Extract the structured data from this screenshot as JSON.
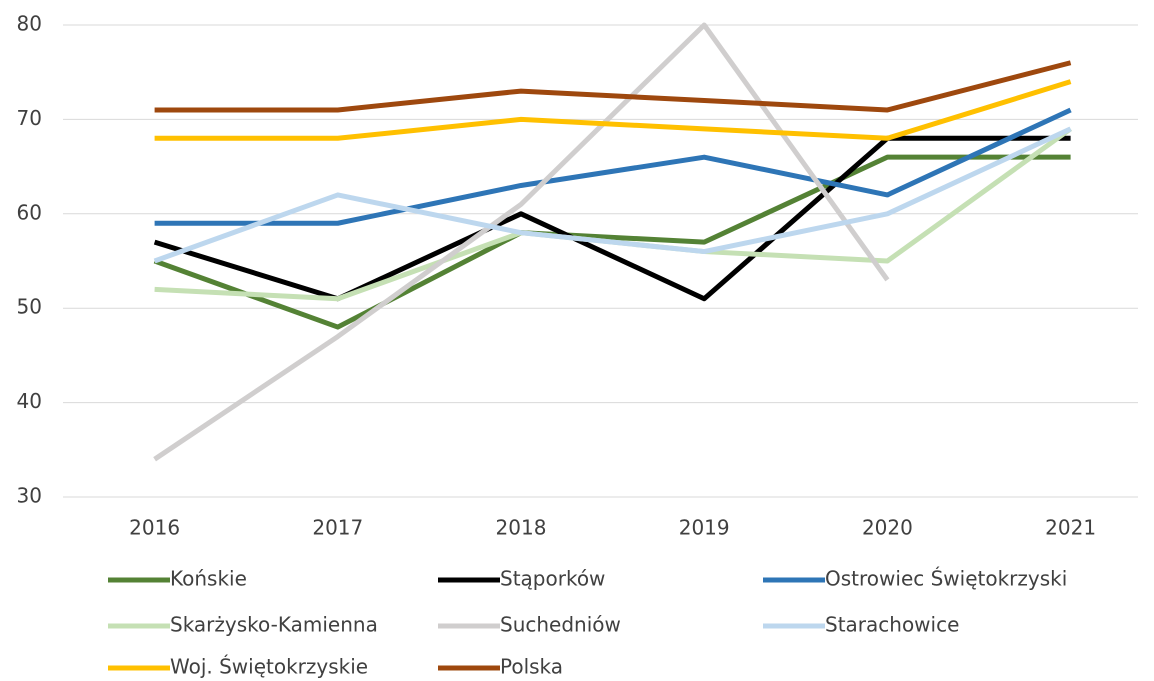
{
  "chart_data": {
    "type": "line",
    "categories": [
      "2016",
      "2017",
      "2018",
      "2019",
      "2020",
      "2021"
    ],
    "series": [
      {
        "name": "Końskie",
        "color": "#548235",
        "values": [
          55,
          48,
          58,
          57,
          66,
          66
        ]
      },
      {
        "name": "Stąporków",
        "color": "#000000",
        "values": [
          57,
          51,
          60,
          51,
          68,
          68
        ]
      },
      {
        "name": "Ostrowiec Świętokrzyski",
        "color": "#2e75b6",
        "values": [
          59,
          59,
          63,
          66,
          62,
          71
        ]
      },
      {
        "name": "Skarżysko-Kamienna",
        "color": "#c5e0b4",
        "values": [
          52,
          51,
          58,
          56,
          55,
          69
        ]
      },
      {
        "name": "Suchedniów",
        "color": "#d0cece",
        "values": [
          34,
          47,
          61,
          80,
          53,
          null
        ]
      },
      {
        "name": "Starachowice",
        "color": "#bdd7ee",
        "values": [
          55,
          62,
          58,
          56,
          60,
          69
        ]
      },
      {
        "name": "Woj. Świętokrzyskie",
        "color": "#ffc000",
        "values": [
          68,
          68,
          70,
          69,
          68,
          74
        ]
      },
      {
        "name": "Polska",
        "color": "#9e480e",
        "values": [
          71,
          71,
          73,
          72,
          71,
          76
        ]
      }
    ],
    "ylim": [
      30,
      80
    ],
    "yticks": [
      30,
      40,
      50,
      60,
      70,
      80
    ],
    "grid": true,
    "legend": "bottom"
  }
}
